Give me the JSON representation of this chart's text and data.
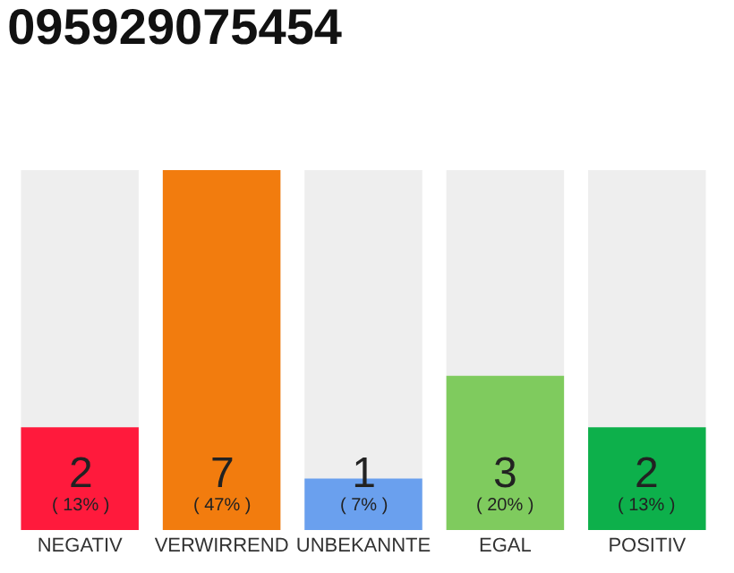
{
  "chart_data": {
    "type": "bar",
    "title": "095929075454",
    "categories": [
      "NEGATIV",
      "VERWIRREND",
      "UNBEKANNTE",
      "EGAL",
      "POSITIV"
    ],
    "values": [
      2,
      7,
      1,
      3,
      2
    ],
    "colors": [
      "#ff1a3c",
      "#f27c0e",
      "#6aa0ee",
      "#7fcb5e",
      "#0db04b"
    ],
    "value_labels": [
      "2\n( 13% )",
      "7\n( 47% )",
      "1\n( 7% )",
      "3\n( 20% )",
      "2\n( 13% )"
    ],
    "tick_labels": "x",
    "grid": false,
    "legend": false
  }
}
